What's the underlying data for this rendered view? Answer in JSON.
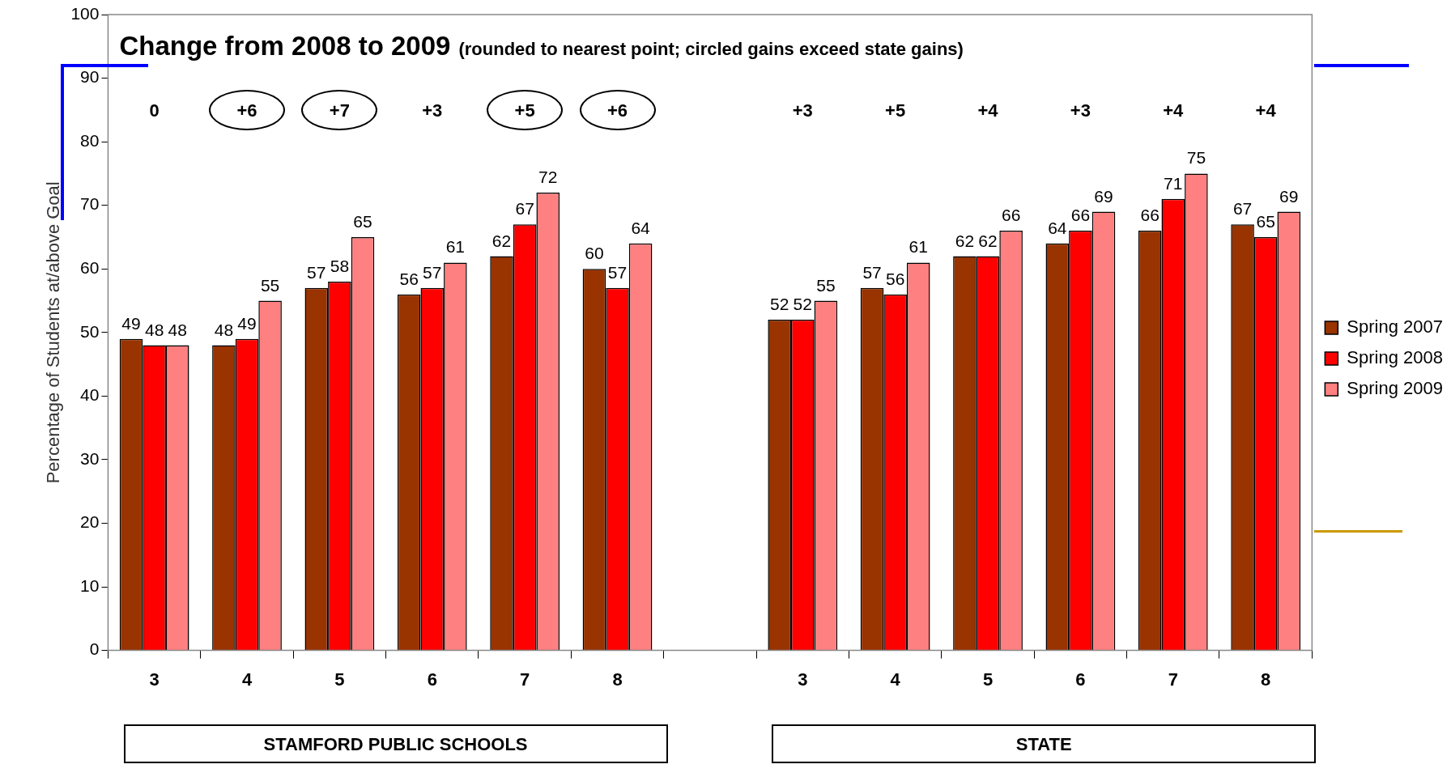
{
  "chart_data": {
    "type": "bar",
    "title": "Change from 2008 to 2009",
    "subtitle": "(rounded to nearest point; circled gains exceed state gains)",
    "ylabel": "Percentage of Students at/above Goal",
    "categories": [
      "3",
      "4",
      "5",
      "6",
      "7",
      "8",
      null,
      "3",
      "4",
      "5",
      "6",
      "7",
      "8"
    ],
    "series": [
      {
        "name": "Spring 2007",
        "color": "#993300",
        "values": [
          49,
          48,
          57,
          56,
          62,
          60,
          null,
          52,
          57,
          62,
          64,
          66,
          67
        ]
      },
      {
        "name": "Spring 2008",
        "color": "#ff0000",
        "values": [
          48,
          49,
          58,
          57,
          67,
          57,
          null,
          52,
          56,
          62,
          66,
          71,
          65
        ]
      },
      {
        "name": "Spring 2009",
        "color": "#ff8080",
        "values": [
          48,
          55,
          65,
          61,
          72,
          64,
          null,
          55,
          61,
          66,
          69,
          75,
          69
        ]
      }
    ],
    "ylim": [
      0,
      100
    ],
    "yticks": [
      0,
      10,
      20,
      30,
      40,
      50,
      60,
      70,
      80,
      90,
      100
    ],
    "grid": false,
    "legend": "right",
    "data_labels": true,
    "annotations": [
      "0",
      "+6",
      "+7",
      "+3",
      "+5",
      "+6",
      "+3",
      "+5",
      "+4",
      "+3",
      "+4",
      "+4",
      "STAMFORD PUBLIC SCHOOLS",
      "STATE"
    ]
  }
}
